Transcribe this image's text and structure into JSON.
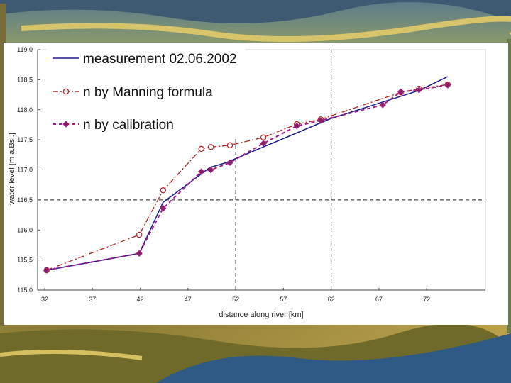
{
  "chart_data": {
    "type": "line",
    "xlabel": "distance along river [km]",
    "ylabel": "water level [m a.Bsl.]",
    "xlim": [
      32,
      76
    ],
    "ylim": [
      115.0,
      119.0
    ],
    "x_ticks": [
      "32",
      "37",
      "42",
      "47",
      "52",
      "57",
      "62",
      "67",
      "72"
    ],
    "y_ticks": [
      "115,0",
      "115,5",
      "116,0",
      "116,5",
      "117,0",
      "117,5",
      "118,0",
      "118,5",
      "119,0"
    ],
    "reference_lines": {
      "x": [
        52,
        62
      ],
      "y": [
        116.5
      ]
    },
    "grid": false,
    "legend_position": "top-left",
    "series": [
      {
        "name": "measurement 02.06.2002",
        "color": "#1a1a8c",
        "style": "solid",
        "marker": "none",
        "x": [
          32.2,
          41.9,
          44.4,
          49.3,
          51.0,
          61.9,
          71.2,
          74.2
        ],
        "y": [
          115.33,
          115.61,
          116.46,
          117.04,
          117.12,
          117.85,
          118.32,
          118.55
        ]
      },
      {
        "name": "n by Manning formula",
        "color": "#b22222",
        "style": "dashdot",
        "marker": "open-circle",
        "x": [
          32.2,
          41.9,
          44.4,
          48.4,
          49.4,
          51.4,
          54.9,
          58.4,
          60.9,
          69.3,
          71.2,
          74.2
        ],
        "y": [
          115.33,
          115.92,
          116.66,
          117.35,
          117.38,
          117.41,
          117.54,
          117.76,
          117.84,
          118.29,
          118.35,
          118.42
        ]
      },
      {
        "name": "n by calibration",
        "color": "#a0208c",
        "style": "dashed",
        "marker": "filled-diamond",
        "x": [
          32.2,
          41.9,
          44.4,
          48.4,
          49.4,
          51.4,
          54.9,
          58.4,
          60.9,
          67.4,
          69.3,
          71.2,
          74.2
        ],
        "y": [
          115.33,
          115.61,
          116.36,
          116.97,
          117.0,
          117.12,
          117.44,
          117.73,
          117.82,
          118.08,
          118.3,
          118.33,
          118.41
        ]
      }
    ]
  }
}
